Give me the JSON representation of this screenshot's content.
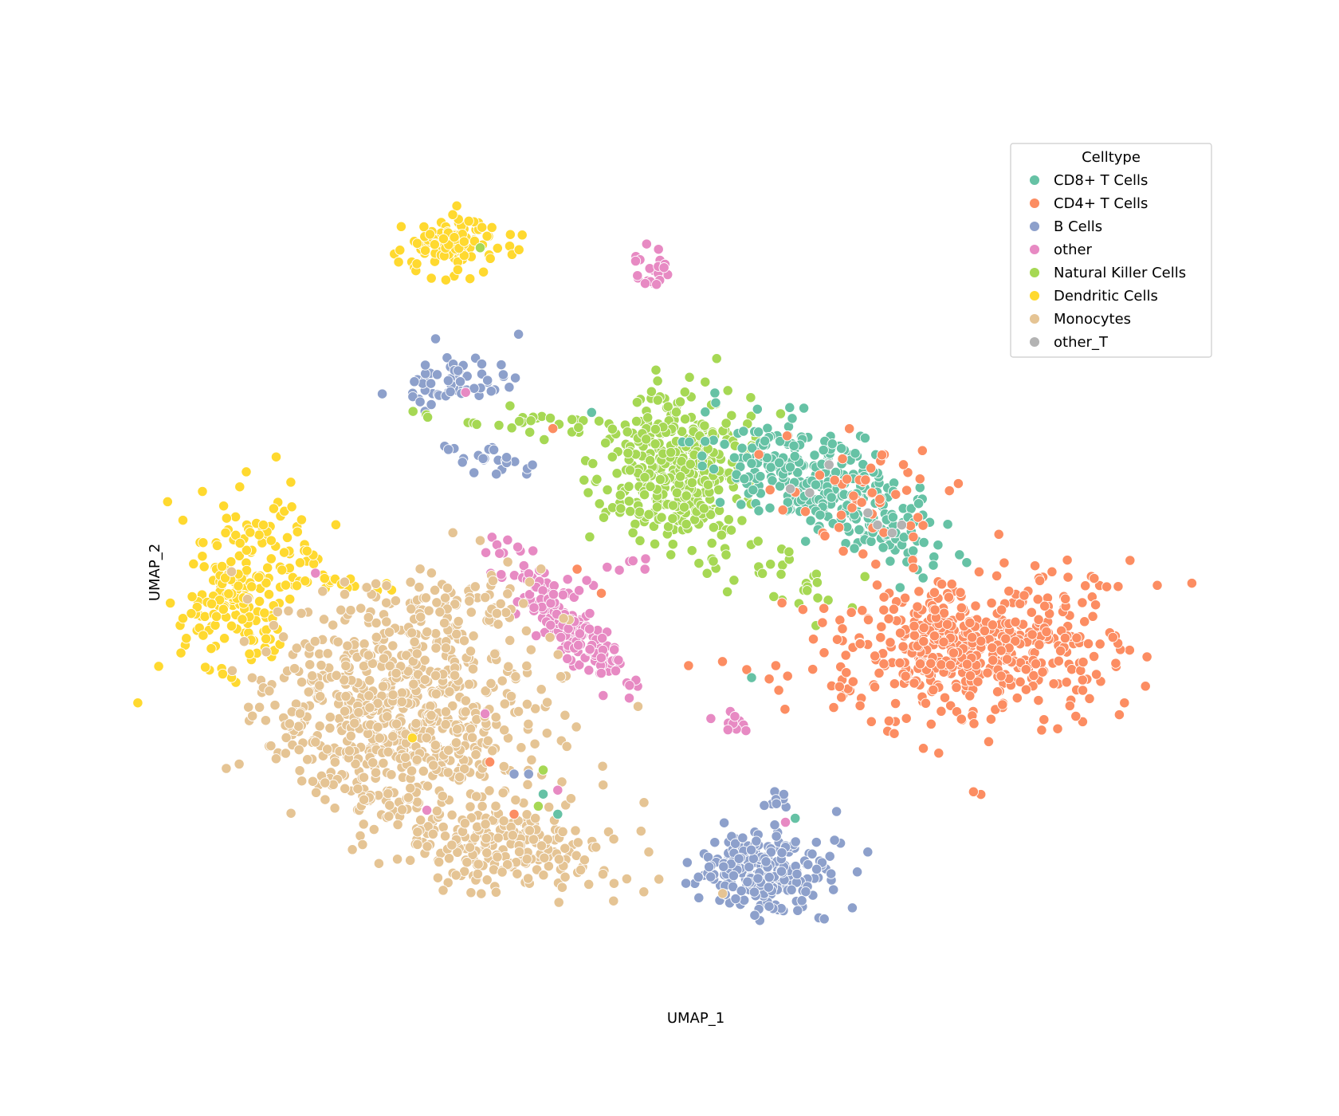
{
  "chart_data": {
    "type": "scatter",
    "xlabel": "UMAP_1",
    "ylabel": "UMAP_2",
    "grid": false,
    "legend_placement": "top-right",
    "legend": {
      "title": "Celltype",
      "entries": [
        {
          "name": "CD8+ T Cells",
          "color": "#66c2a5"
        },
        {
          "name": "CD4+ T Cells",
          "color": "#fc8d62"
        },
        {
          "name": "B Cells",
          "color": "#8da0cb"
        },
        {
          "name": "other",
          "color": "#e78ac3"
        },
        {
          "name": "Natural Killer Cells",
          "color": "#a6d854"
        },
        {
          "name": "Dendritic Cells",
          "color": "#ffd92f"
        },
        {
          "name": "Monocytes",
          "color": "#e5c494"
        },
        {
          "name": "other_T",
          "color": "#b3b3b3"
        }
      ]
    },
    "xlim": [
      0,
      10
    ],
    "ylim": [
      0,
      10
    ],
    "clusters": [
      {
        "label": "Dendritic Cells",
        "cx": 2.52,
        "cy": 9.0,
        "sx": 0.28,
        "sy": 0.2,
        "n": 110,
        "rot": 15
      },
      {
        "label": "Dendritic Cells",
        "cx": 0.35,
        "cy": 4.7,
        "sx": 0.28,
        "sy": 0.55,
        "n": 200,
        "rot": -20
      },
      {
        "label": "Dendritic Cells",
        "cx": 1.2,
        "cy": 4.85,
        "sx": 0.35,
        "sy": 0.06,
        "n": 20,
        "rot": -5
      },
      {
        "label": "other",
        "cx": 4.55,
        "cy": 8.8,
        "sx": 0.1,
        "sy": 0.12,
        "n": 22,
        "rot": 0
      },
      {
        "label": "B Cells",
        "cx": 2.55,
        "cy": 7.3,
        "sx": 0.3,
        "sy": 0.18,
        "n": 60,
        "rot": 10
      },
      {
        "label": "B Cells",
        "cx": 2.95,
        "cy": 6.35,
        "sx": 0.25,
        "sy": 0.08,
        "n": 25,
        "rot": -15
      },
      {
        "label": "B Cells",
        "cx": 5.7,
        "cy": 1.25,
        "sx": 0.35,
        "sy": 0.25,
        "n": 240,
        "rot": 0
      },
      {
        "label": "B Cells",
        "cx": 5.85,
        "cy": 2.05,
        "sx": 0.05,
        "sy": 0.08,
        "n": 8,
        "rot": 0
      },
      {
        "label": "Natural Killer Cells",
        "cx": 4.9,
        "cy": 6.25,
        "sx": 0.35,
        "sy": 0.5,
        "n": 380,
        "rot": -10
      },
      {
        "label": "Natural Killer Cells",
        "cx": 3.7,
        "cy": 6.8,
        "sx": 0.8,
        "sy": 0.08,
        "n": 45,
        "rot": -5
      },
      {
        "label": "Natural Killer Cells",
        "cx": 6.1,
        "cy": 4.8,
        "sx": 0.35,
        "sy": 0.2,
        "n": 25,
        "rot": -30
      },
      {
        "label": "CD8+ T Cells",
        "cx": 6.2,
        "cy": 6.2,
        "sx": 0.55,
        "sy": 0.3,
        "n": 260,
        "rot": -25
      },
      {
        "label": "CD8+ T Cells",
        "cx": 7.0,
        "cy": 5.4,
        "sx": 0.35,
        "sy": 0.25,
        "n": 60,
        "rot": -30
      },
      {
        "label": "CD4+ T Cells",
        "cx": 7.9,
        "cy": 4.05,
        "sx": 0.7,
        "sy": 0.45,
        "n": 520,
        "rot": 8
      },
      {
        "label": "CD4+ T Cells",
        "cx": 6.7,
        "cy": 5.9,
        "sx": 0.45,
        "sy": 0.35,
        "n": 50,
        "rot": -25
      },
      {
        "label": "other",
        "cx": 3.7,
        "cy": 4.3,
        "sx": 0.55,
        "sy": 0.13,
        "n": 170,
        "rot": -52
      },
      {
        "label": "other",
        "cx": 4.25,
        "cy": 5.0,
        "sx": 0.3,
        "sy": 0.05,
        "n": 10,
        "rot": 25
      },
      {
        "label": "other",
        "cx": 5.45,
        "cy": 3.1,
        "sx": 0.15,
        "sy": 0.07,
        "n": 10,
        "rot": -35
      },
      {
        "label": "Monocytes",
        "cx": 2.0,
        "cy": 3.3,
        "sx": 0.75,
        "sy": 0.55,
        "n": 620,
        "rot": -25
      },
      {
        "label": "Monocytes",
        "cx": 2.45,
        "cy": 4.5,
        "sx": 0.45,
        "sy": 0.3,
        "n": 90,
        "rot": 0
      },
      {
        "label": "Monocytes",
        "cx": 3.0,
        "cy": 1.55,
        "sx": 0.6,
        "sy": 0.28,
        "n": 230,
        "rot": -10
      },
      {
        "label": "Monocytes",
        "cx": 1.5,
        "cy": 2.3,
        "sx": 0.45,
        "sy": 0.22,
        "n": 70,
        "rot": -40
      }
    ],
    "outliers": [
      {
        "label": "CD4+ T Cells",
        "x": 3.8,
        "y": 5.0
      },
      {
        "label": "CD4+ T Cells",
        "x": 4.05,
        "y": 4.7
      },
      {
        "label": "CD4+ T Cells",
        "x": 4.95,
        "y": 3.8
      },
      {
        "label": "CD4+ T Cells",
        "x": 5.3,
        "y": 3.85
      },
      {
        "label": "CD4+ T Cells",
        "x": 5.55,
        "y": 3.75
      },
      {
        "label": "CD4+ T Cells",
        "x": 5.85,
        "y": 3.8
      },
      {
        "label": "CD4+ T Cells",
        "x": 3.15,
        "y": 1.95
      },
      {
        "label": "CD4+ T Cells",
        "x": 3.55,
        "y": 6.75
      },
      {
        "label": "CD4+ T Cells",
        "x": 2.9,
        "y": 2.6
      },
      {
        "label": "CD8+ T Cells",
        "x": 3.95,
        "y": 6.95
      },
      {
        "label": "CD8+ T Cells",
        "x": 3.45,
        "y": 2.2
      },
      {
        "label": "CD8+ T Cells",
        "x": 3.6,
        "y": 1.95
      },
      {
        "label": "CD8+ T Cells",
        "x": 5.6,
        "y": 3.65
      },
      {
        "label": "CD8+ T Cells",
        "x": 6.05,
        "y": 1.9
      },
      {
        "label": "Natural Killer Cells",
        "x": 3.4,
        "y": 2.05
      },
      {
        "label": "Natural Killer Cells",
        "x": 3.45,
        "y": 2.5
      },
      {
        "label": "Natural Killer Cells",
        "x": 2.8,
        "y": 9.0
      },
      {
        "label": "other",
        "x": 2.25,
        "y": 2.0
      },
      {
        "label": "other",
        "x": 3.6,
        "y": 2.25
      },
      {
        "label": "other",
        "x": 2.85,
        "y": 3.2
      },
      {
        "label": "other",
        "x": 1.1,
        "y": 4.95
      },
      {
        "label": "other",
        "x": 5.95,
        "y": 1.85
      },
      {
        "label": "other",
        "x": 2.65,
        "y": 7.2
      },
      {
        "label": "other",
        "x": 4.5,
        "y": 5.0
      },
      {
        "label": "B Cells",
        "x": 3.15,
        "y": 2.45
      },
      {
        "label": "B Cells",
        "x": 3.3,
        "y": 2.45
      },
      {
        "label": "Dendritic Cells",
        "x": 2.1,
        "y": 2.9
      },
      {
        "label": "other_T",
        "x": 6.0,
        "y": 6.0
      },
      {
        "label": "other_T",
        "x": 6.2,
        "y": 5.95
      },
      {
        "label": "other_T",
        "x": 6.8,
        "y": 5.7
      },
      {
        "label": "other_T",
        "x": 6.9,
        "y": 5.55
      },
      {
        "label": "other_T",
        "x": 7.05,
        "y": 5.45
      },
      {
        "label": "other_T",
        "x": 7.15,
        "y": 5.55
      },
      {
        "label": "other_T",
        "x": 6.4,
        "y": 6.3
      }
    ]
  }
}
